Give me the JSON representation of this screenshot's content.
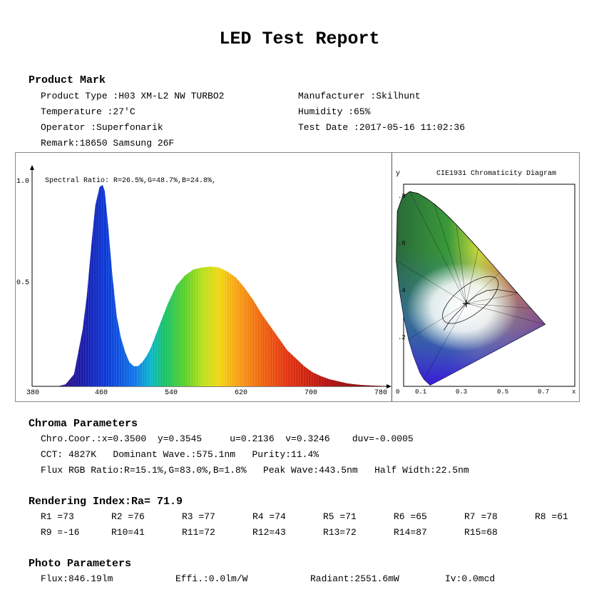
{
  "title": "LED Test Report",
  "product": {
    "heading": "Product Mark",
    "type": "Product Type :H03 XM-L2 NW TURBO2",
    "manufacturer": "Manufacturer :Skilhunt",
    "temperature": "Temperature :27'C",
    "humidity": "Humidity :65%",
    "operator": "Operator :Superfonarik",
    "test_date": "Test Date :2017-05-16 11:02:36",
    "remark": "Remark:18650 Samsung 26F"
  },
  "spectrum": {
    "ratio_text": "Spectral Ratio:  R=26.5%,G=48.7%,B=24.8%,",
    "y_ticks": [
      "1.0",
      "0.5"
    ],
    "x_ticks": [
      "380",
      "460",
      "540",
      "620",
      "700",
      "780"
    ]
  },
  "chart_data": {
    "type": "area",
    "title": "",
    "xlabel": "",
    "ylabel": "",
    "xlim": [
      380,
      780
    ],
    "ylim": [
      0,
      1.0
    ],
    "x": [
      380,
      390,
      400,
      410,
      420,
      425,
      430,
      435,
      440,
      443.5,
      446,
      450,
      455,
      460,
      465,
      470,
      475,
      480,
      485,
      490,
      495,
      500,
      510,
      520,
      530,
      540,
      550,
      560,
      570,
      580,
      590,
      600,
      610,
      620,
      630,
      640,
      650,
      660,
      670,
      680,
      690,
      700,
      710,
      720,
      730,
      740,
      750,
      760,
      770,
      780
    ],
    "series": [
      {
        "values": [
          0,
          0,
          0.01,
          0.06,
          0.28,
          0.45,
          0.69,
          0.9,
          0.99,
          1.0,
          0.97,
          0.8,
          0.55,
          0.35,
          0.24,
          0.17,
          0.12,
          0.1,
          0.1,
          0.12,
          0.15,
          0.19,
          0.3,
          0.41,
          0.5,
          0.55,
          0.58,
          0.59,
          0.595,
          0.59,
          0.57,
          0.54,
          0.49,
          0.43,
          0.36,
          0.3,
          0.24,
          0.18,
          0.14,
          0.1,
          0.07,
          0.05,
          0.035,
          0.025,
          0.015,
          0.01,
          0.006,
          0.004,
          0.002,
          0
        ]
      }
    ]
  },
  "cie": {
    "y_label": "y",
    "title": "CIE1931 Chromaticity Diagram",
    "y_ticks": [
      ".8",
      ".6",
      ".4",
      ".2"
    ],
    "x_ticks": [
      "0",
      "0.1",
      "0.3",
      "0.5",
      "0.7"
    ],
    "x_label": "x",
    "point": [
      0.35,
      0.3545
    ]
  },
  "chroma": {
    "heading": "Chroma Parameters",
    "line1": "Chro.Coor.:x=0.3500  y=0.3545     u=0.2136  v=0.3246    duv=-0.0005",
    "line2": "CCT: 4827K   Dominant Wave.:575.1nm   Purity:11.4%",
    "line3": "Flux RGB Ratio:R=15.1%,G=83.0%,B=1.8%   Peak Wave:443.5nm   Half Width:22.5nm"
  },
  "rendering": {
    "heading": "Rendering Index:Ra= 71.9",
    "row1": [
      "R1 =73",
      "R2 =76",
      "R3 =77",
      "R4 =74",
      "R5 =71",
      "R6 =65",
      "R7 =78",
      "R8 =61"
    ],
    "row2": [
      "R9 =-16",
      "R10=41",
      "R11=72",
      "R12=43",
      "R13=72",
      "R14=87",
      "R15=68"
    ]
  },
  "photo": {
    "heading": "Photo Parameters",
    "flux": "Flux:846.19lm",
    "effi": "Effi.:0.0lm/W",
    "radiant": "Radiant:2551.6mW",
    "iv": "Iv:0.0mcd"
  }
}
